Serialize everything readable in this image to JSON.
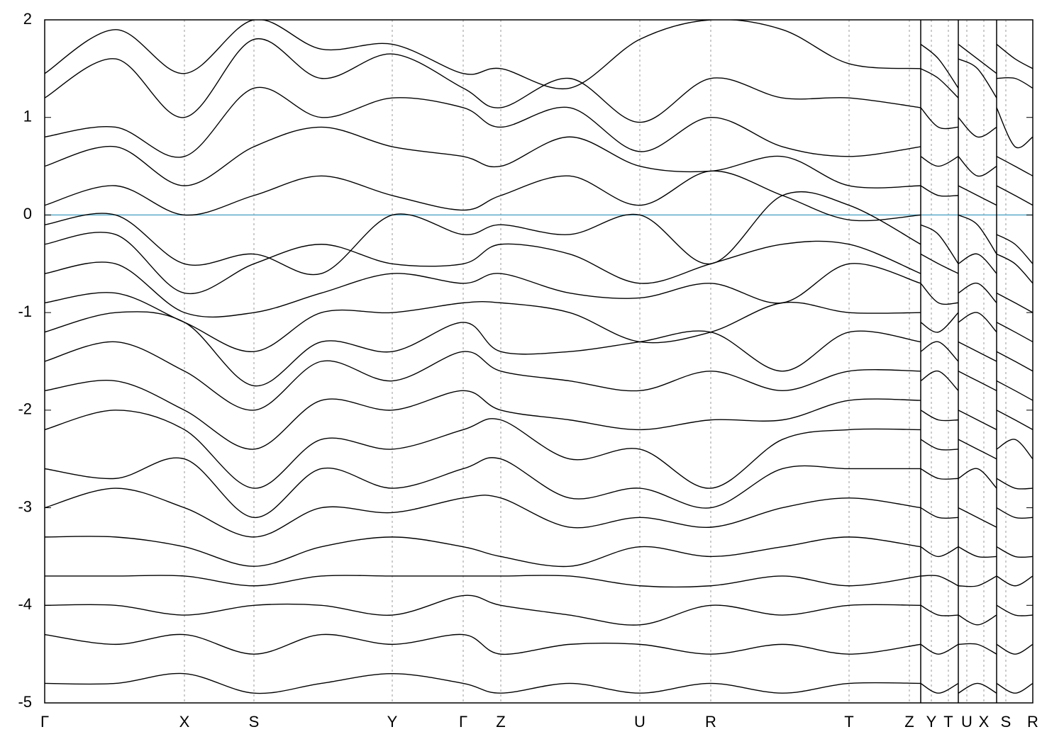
{
  "chart_data": {
    "type": "line",
    "color": "#000000",
    "ylim": [
      -5,
      2
    ],
    "yticks": [
      -5,
      -4,
      -3,
      -2,
      -1,
      0,
      1,
      2
    ],
    "xlim": [
      0,
      1.393
    ],
    "xticks": [
      {
        "value": 0,
        "label": "Γ"
      },
      {
        "value": 0.197,
        "label": "X"
      },
      {
        "value": 0.295,
        "label": "S"
      },
      {
        "value": 0.49,
        "label": "Y"
      },
      {
        "value": 0.59,
        "label": "Γ"
      },
      {
        "value": 0.643,
        "label": "Z"
      },
      {
        "value": 0.839,
        "label": "U"
      },
      {
        "value": 0.939,
        "label": "R"
      },
      {
        "value": 1.134,
        "label": "T"
      },
      {
        "value": 1.219,
        "label": "Z"
      },
      {
        "value": 1.25,
        "label": "Y"
      },
      {
        "value": 1.274,
        "label": "T"
      },
      {
        "value": 1.3,
        "label": "U"
      },
      {
        "value": 1.324,
        "label": "X"
      },
      {
        "value": 1.355,
        "label": "S"
      },
      {
        "value": 1.393,
        "label": "R"
      }
    ],
    "breaks": [
      1.235,
      1.288,
      1.342
    ],
    "fermi_level": 0,
    "fermi_color": "#5aaac8",
    "grid": "x",
    "x": [
      0,
      0.1,
      0.197,
      0.295,
      0.39,
      0.49,
      0.59,
      0.643,
      0.74,
      0.839,
      0.939,
      1.04,
      1.134,
      1.235,
      1.235,
      1.235,
      1.26,
      1.288,
      1.288,
      1.288,
      1.315,
      1.342,
      1.342,
      1.342,
      1.368,
      1.393
    ],
    "series": [
      {
        "values": [
          1.45,
          1.9,
          1.45,
          2.0,
          1.7,
          1.75,
          1.45,
          1.5,
          1.3,
          1.8,
          2.0,
          1.9,
          1.55,
          1.5,
          null,
          1.75,
          1.6,
          1.3,
          null,
          1.75,
          1.6,
          1.45,
          null,
          1.75,
          1.6,
          1.5
        ]
      },
      {
        "values": [
          1.2,
          1.6,
          1.0,
          1.8,
          1.4,
          1.65,
          1.3,
          1.1,
          1.4,
          0.95,
          1.4,
          1.2,
          1.2,
          1.1,
          null,
          1.5,
          1.4,
          1.2,
          null,
          1.6,
          1.5,
          1.2,
          null,
          1.4,
          1.4,
          1.3
        ]
      },
      {
        "values": [
          0.8,
          0.9,
          0.6,
          1.3,
          1.0,
          1.2,
          1.1,
          0.9,
          1.1,
          0.65,
          1.0,
          0.7,
          0.6,
          0.7,
          null,
          1.1,
          0.9,
          0.9,
          null,
          1.0,
          0.8,
          0.9,
          null,
          1.1,
          0.7,
          0.8
        ]
      },
      {
        "values": [
          0.5,
          0.7,
          0.3,
          0.7,
          0.9,
          0.7,
          0.6,
          0.5,
          0.8,
          0.5,
          0.45,
          0.6,
          0.3,
          0.3,
          null,
          0.6,
          0.5,
          0.6,
          null,
          0.6,
          0.4,
          0.5,
          null,
          0.6,
          0.5,
          0.4
        ]
      },
      {
        "values": [
          0.1,
          0.3,
          0.0,
          0.2,
          0.4,
          0.2,
          0.05,
          0.2,
          0.4,
          0.1,
          0.45,
          0.2,
          -0.05,
          0.0,
          null,
          0.3,
          0.2,
          0.2,
          null,
          0.3,
          0.2,
          0.1,
          null,
          0.3,
          0.2,
          0.1
        ]
      },
      {
        "values": [
          -0.1,
          0.0,
          -0.5,
          -0.4,
          -0.6,
          0.0,
          -0.2,
          -0.1,
          -0.2,
          0.0,
          -0.5,
          0.2,
          0.1,
          -0.3,
          null,
          -0.1,
          -0.2,
          -0.5,
          null,
          0.0,
          -0.1,
          -0.4,
          null,
          -0.2,
          -0.3,
          -0.5
        ]
      },
      {
        "values": [
          -0.3,
          -0.2,
          -0.8,
          -0.5,
          -0.3,
          -0.5,
          -0.5,
          -0.3,
          -0.4,
          -0.7,
          -0.5,
          -0.3,
          -0.3,
          -0.6,
          null,
          -0.4,
          -0.5,
          -0.6,
          null,
          -0.5,
          -0.4,
          -0.6,
          null,
          -0.4,
          -0.5,
          -0.7
        ]
      },
      {
        "values": [
          -0.6,
          -0.5,
          -1.0,
          -1.0,
          -0.8,
          -0.6,
          -0.7,
          -0.6,
          -0.8,
          -0.85,
          -0.7,
          -0.9,
          -0.5,
          -0.7,
          null,
          -0.7,
          -0.9,
          -0.9,
          null,
          -0.8,
          -0.7,
          -0.9,
          null,
          -0.8,
          -0.9,
          -1.0
        ]
      },
      {
        "values": [
          -0.9,
          -0.8,
          -1.1,
          -1.4,
          -1.0,
          -1.0,
          -0.9,
          -0.9,
          -1.0,
          -1.3,
          -1.2,
          -0.9,
          -1.0,
          -1.0,
          null,
          -1.1,
          -1.2,
          -1.0,
          null,
          -1.1,
          -1.0,
          -1.2,
          null,
          -1.1,
          -1.2,
          -1.3
        ]
      },
      {
        "values": [
          -1.2,
          -1.0,
          -1.1,
          -1.75,
          -1.3,
          -1.4,
          -1.1,
          -1.4,
          -1.4,
          -1.3,
          -1.2,
          -1.6,
          -1.2,
          -1.3,
          null,
          -1.4,
          -1.3,
          -1.5,
          null,
          -1.3,
          -1.4,
          -1.5,
          null,
          -1.4,
          -1.5,
          -1.6
        ]
      },
      {
        "values": [
          -1.5,
          -1.3,
          -1.6,
          -2.0,
          -1.5,
          -1.7,
          -1.4,
          -1.6,
          -1.7,
          -1.8,
          -1.6,
          -1.8,
          -1.6,
          -1.6,
          null,
          -1.7,
          -1.6,
          -1.8,
          null,
          -1.6,
          -1.7,
          -1.8,
          null,
          -1.7,
          -1.8,
          -1.9
        ]
      },
      {
        "values": [
          -1.8,
          -1.7,
          -2.0,
          -2.4,
          -1.9,
          -2.0,
          -1.8,
          -2.0,
          -2.1,
          -2.2,
          -2.1,
          -2.1,
          -1.9,
          -1.9,
          null,
          -2.0,
          -2.1,
          -2.1,
          null,
          -2.0,
          -2.1,
          -2.2,
          null,
          -2.0,
          -2.1,
          -2.2
        ]
      },
      {
        "values": [
          -2.2,
          -2.0,
          -2.2,
          -2.8,
          -2.3,
          -2.4,
          -2.2,
          -2.1,
          -2.5,
          -2.4,
          -2.8,
          -2.3,
          -2.2,
          -2.2,
          null,
          -2.3,
          -2.4,
          -2.4,
          null,
          -2.3,
          -2.4,
          -2.5,
          null,
          -2.4,
          -2.3,
          -2.5
        ]
      },
      {
        "values": [
          -2.6,
          -2.7,
          -2.5,
          -3.1,
          -2.6,
          -2.8,
          -2.6,
          -2.5,
          -2.9,
          -2.8,
          -3.0,
          -2.6,
          -2.6,
          -2.6,
          null,
          -2.6,
          -2.7,
          -2.7,
          null,
          -2.7,
          -2.6,
          -2.8,
          null,
          -2.7,
          -2.8,
          -2.8
        ]
      },
      {
        "values": [
          -3.0,
          -2.8,
          -3.0,
          -3.3,
          -3.0,
          -3.05,
          -2.9,
          -2.9,
          -3.2,
          -3.1,
          -3.2,
          -3.0,
          -2.9,
          -3.0,
          null,
          -3.0,
          -3.1,
          -3.1,
          null,
          -3.0,
          -3.1,
          -3.2,
          null,
          -3.0,
          -3.1,
          -3.1
        ]
      },
      {
        "values": [
          -3.3,
          -3.3,
          -3.4,
          -3.6,
          -3.4,
          -3.3,
          -3.4,
          -3.5,
          -3.6,
          -3.4,
          -3.5,
          -3.4,
          -3.3,
          -3.4,
          null,
          -3.4,
          -3.5,
          -3.4,
          null,
          -3.4,
          -3.5,
          -3.5,
          null,
          -3.4,
          -3.5,
          -3.5
        ]
      },
      {
        "values": [
          -3.7,
          -3.7,
          -3.7,
          -3.8,
          -3.7,
          -3.7,
          -3.7,
          -3.7,
          -3.7,
          -3.8,
          -3.8,
          -3.7,
          -3.8,
          -3.7,
          null,
          -3.7,
          -3.7,
          -3.8,
          null,
          -3.8,
          -3.8,
          -3.7,
          null,
          -3.7,
          -3.8,
          -3.7
        ]
      },
      {
        "values": [
          -4.0,
          -4.0,
          -4.1,
          -4.0,
          -4.0,
          -4.1,
          -3.9,
          -4.0,
          -4.1,
          -4.2,
          -4.0,
          -4.1,
          -4.0,
          -4.0,
          null,
          -4.0,
          -4.1,
          -4.1,
          null,
          -4.1,
          -4.2,
          -4.1,
          null,
          -4.0,
          -4.1,
          -4.1
        ]
      },
      {
        "values": [
          -4.3,
          -4.4,
          -4.3,
          -4.5,
          -4.3,
          -4.4,
          -4.3,
          -4.5,
          -4.4,
          -4.4,
          -4.5,
          -4.4,
          -4.5,
          -4.4,
          null,
          -4.4,
          -4.5,
          -4.4,
          null,
          -4.4,
          -4.4,
          -4.5,
          null,
          -4.4,
          -4.5,
          -4.4
        ]
      },
      {
        "values": [
          -4.8,
          -4.8,
          -4.7,
          -4.9,
          -4.8,
          -4.7,
          -4.8,
          -4.9,
          -4.8,
          -4.9,
          -4.8,
          -4.9,
          -4.8,
          -4.8,
          null,
          -4.8,
          -4.9,
          -4.8,
          null,
          -4.9,
          -4.8,
          -4.9,
          null,
          -4.8,
          -4.9,
          -4.8
        ]
      }
    ]
  }
}
